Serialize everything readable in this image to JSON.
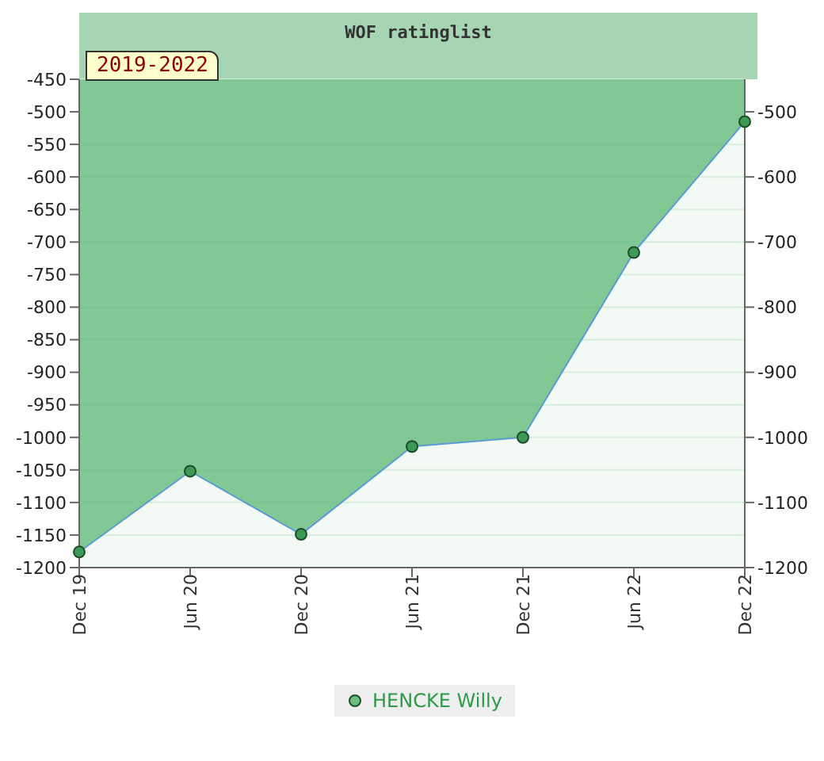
{
  "chart_data": {
    "type": "area",
    "title": "WOF ratinglist",
    "annotations": [
      "2019-2022"
    ],
    "categories": [
      "Dec 19",
      "Jun 20",
      "Dec 20",
      "Jun 21",
      "Dec 21",
      "Jun 22",
      "Dec 22"
    ],
    "series": [
      {
        "name": "HENCKE Willy",
        "color": "#6cbf84",
        "values": [
          -1176,
          -1052,
          -1149,
          -1014,
          -1000,
          -716,
          -515
        ]
      }
    ],
    "ylim": [
      -1200,
      -450
    ],
    "yticks": [
      -450,
      -500,
      -550,
      -600,
      -650,
      -700,
      -750,
      -800,
      -850,
      -900,
      -950,
      -1000,
      -1050,
      -1100,
      -1150,
      -1200
    ],
    "y2lim": [
      -1200,
      -450
    ],
    "y2ticks": [
      -500,
      -600,
      -700,
      -800,
      -900,
      -1000,
      -1100,
      -1200
    ],
    "grid": "y",
    "legend": "bottom",
    "marker": "circle"
  }
}
